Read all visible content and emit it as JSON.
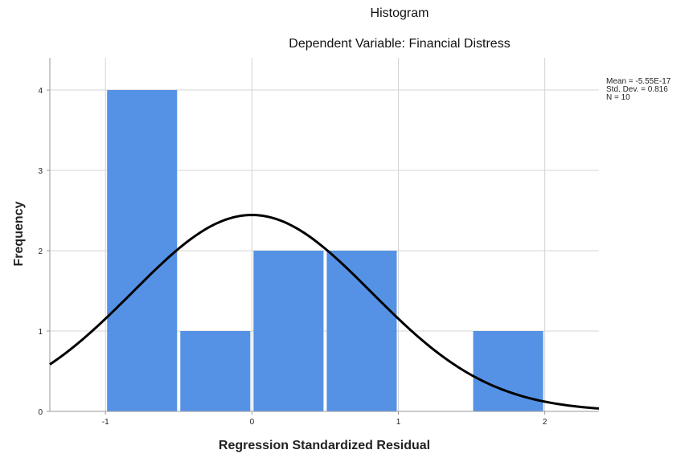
{
  "chart_data": {
    "type": "bar",
    "title": "Histogram",
    "subtitle": "Dependent Variable: Financial Distress",
    "xlabel": "Regression Standardized Residual",
    "ylabel": "Frequency",
    "bins": [
      {
        "start": -1.0,
        "end": -0.5,
        "value": 4
      },
      {
        "start": -0.5,
        "end": 0.0,
        "value": 1
      },
      {
        "start": 0.0,
        "end": 0.5,
        "value": 2
      },
      {
        "start": 0.5,
        "end": 1.0,
        "value": 2
      },
      {
        "start": 1.0,
        "end": 1.5,
        "value": 0
      },
      {
        "start": 1.5,
        "end": 2.0,
        "value": 1
      }
    ],
    "xlim": [
      -1.38,
      2.37
    ],
    "ylim": [
      0,
      4.4
    ],
    "xticks": [
      -1,
      0,
      1,
      2
    ],
    "xtick_labels": [
      "-1",
      "0",
      "1",
      "2"
    ],
    "yticks": [
      0,
      1,
      2,
      3,
      4
    ],
    "ytick_labels": [
      "0",
      "1",
      "2",
      "3",
      "4"
    ],
    "grid": true,
    "bar_color": "#5592e5",
    "curve": {
      "type": "normal",
      "mean": 0,
      "std": 0.816,
      "n": 10,
      "bin_width": 0.5,
      "color": "#000000"
    },
    "stats": {
      "mean": "Mean = -5.55E-17",
      "std": "Std. Dev. = 0.816",
      "n": "N = 10"
    }
  }
}
